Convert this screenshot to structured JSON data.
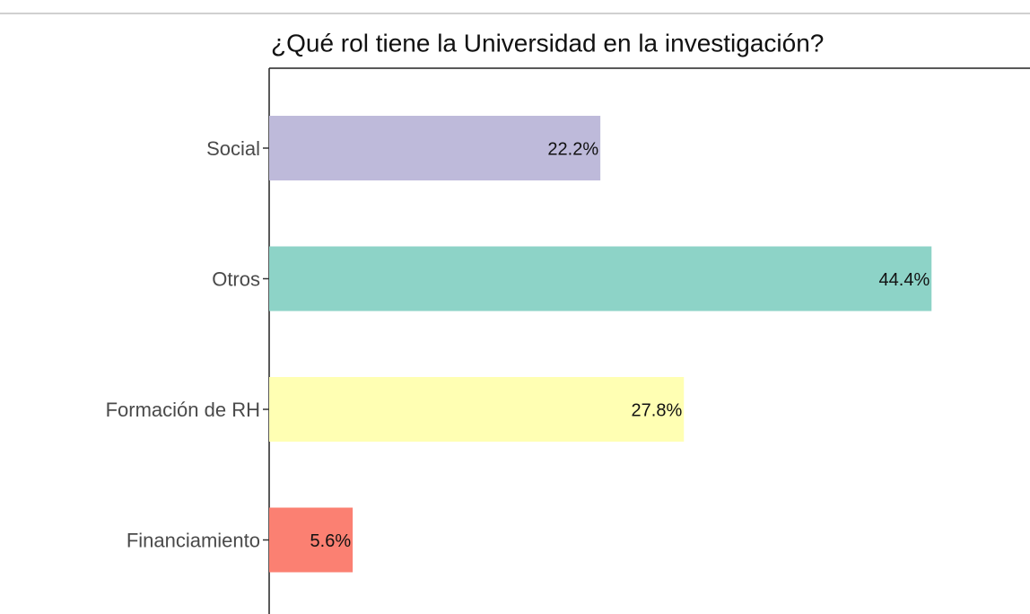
{
  "chart_data": {
    "type": "bar",
    "orientation": "horizontal",
    "title": "¿Qué rol tiene la Universidad en la investigación?",
    "categories": [
      "Social",
      "Otros",
      "Formación de RH",
      "Financiamiento"
    ],
    "values": [
      22.2,
      44.4,
      27.8,
      5.6
    ],
    "value_labels": [
      "22.2%",
      "44.4%",
      "27.8%",
      "5.6%"
    ],
    "colors": [
      "#bebada",
      "#8dd3c7",
      "#ffffb3",
      "#fb8072"
    ],
    "xlim": [
      0,
      51
    ]
  }
}
